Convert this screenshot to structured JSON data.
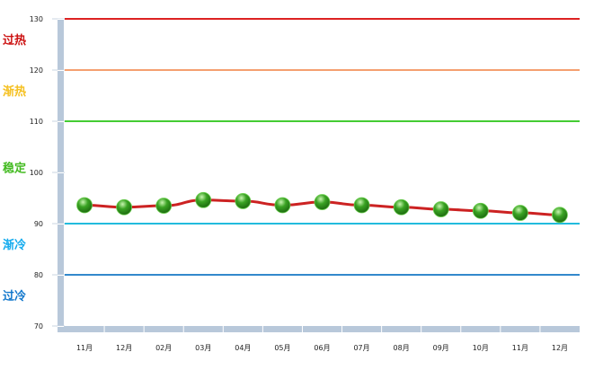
{
  "chart_data": {
    "type": "line",
    "categories": [
      "11月",
      "12月",
      "02月",
      "03月",
      "04月",
      "05月",
      "06月",
      "07月",
      "08月",
      "09月",
      "10月",
      "11月",
      "12月"
    ],
    "values": [
      93.6,
      93.2,
      93.5,
      94.6,
      94.4,
      93.6,
      94.2,
      93.6,
      93.2,
      92.8,
      92.5,
      92.1,
      91.7
    ],
    "ylim": [
      70,
      130
    ],
    "yticks": [
      70,
      80,
      90,
      100,
      110,
      120,
      130
    ],
    "line_color": "#cc2222",
    "marker_color": "#3aa323",
    "reference_lines": [
      {
        "value": 130,
        "color": "#dd2222"
      },
      {
        "value": 120,
        "color": "#f5a070"
      },
      {
        "value": 110,
        "color": "#44cc33"
      },
      {
        "value": 90,
        "color": "#22bbdd"
      },
      {
        "value": 80,
        "color": "#3388cc"
      }
    ],
    "bands": [
      {
        "label": "过热",
        "color": "#cc1111",
        "value": 126
      },
      {
        "label": "渐热",
        "color": "#f5c020",
        "value": 116
      },
      {
        "label": "稳定",
        "color": "#44bb22",
        "value": 101
      },
      {
        "label": "渐冷",
        "color": "#11aaee",
        "value": 86
      },
      {
        "label": "过冷",
        "color": "#1177cc",
        "value": 76
      }
    ]
  }
}
